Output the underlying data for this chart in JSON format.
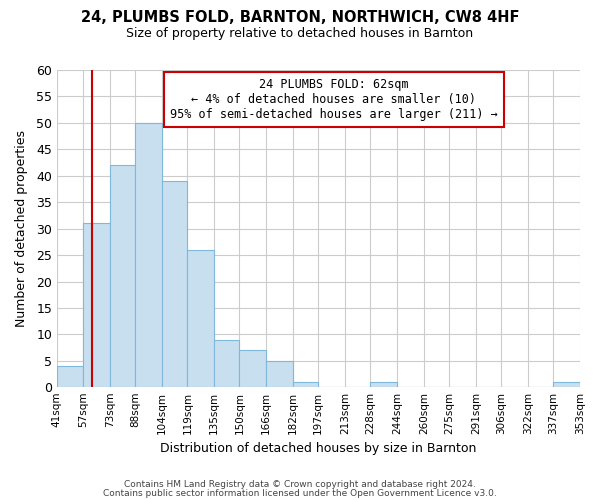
{
  "title": "24, PLUMBS FOLD, BARNTON, NORTHWICH, CW8 4HF",
  "subtitle": "Size of property relative to detached houses in Barnton",
  "xlabel": "Distribution of detached houses by size in Barnton",
  "ylabel": "Number of detached properties",
  "bar_edges": [
    41,
    57,
    73,
    88,
    104,
    119,
    135,
    150,
    166,
    182,
    197,
    213,
    228,
    244,
    260,
    275,
    291,
    306,
    322,
    337,
    353
  ],
  "bar_heights": [
    4,
    31,
    42,
    50,
    39,
    26,
    9,
    7,
    5,
    1,
    0,
    0,
    1,
    0,
    0,
    0,
    0,
    0,
    0,
    1
  ],
  "bar_color": "#c8dff0",
  "bar_edge_color": "#7fb8d8",
  "ylim": [
    0,
    60
  ],
  "yticks": [
    0,
    5,
    10,
    15,
    20,
    25,
    30,
    35,
    40,
    45,
    50,
    55,
    60
  ],
  "x_tick_labels": [
    "41sqm",
    "57sqm",
    "73sqm",
    "88sqm",
    "104sqm",
    "119sqm",
    "135sqm",
    "150sqm",
    "166sqm",
    "182sqm",
    "197sqm",
    "213sqm",
    "228sqm",
    "244sqm",
    "260sqm",
    "275sqm",
    "291sqm",
    "306sqm",
    "322sqm",
    "337sqm",
    "353sqm"
  ],
  "vline_x": 62,
  "vline_color": "#cc0000",
  "annotation_line1": "24 PLUMBS FOLD: 62sqm",
  "annotation_line2": "← 4% of detached houses are smaller (10)",
  "annotation_line3": "95% of semi-detached houses are larger (211) →",
  "footer1": "Contains HM Land Registry data © Crown copyright and database right 2024.",
  "footer2": "Contains public sector information licensed under the Open Government Licence v3.0.",
  "bg_color": "#ffffff",
  "grid_color": "#cccccc"
}
